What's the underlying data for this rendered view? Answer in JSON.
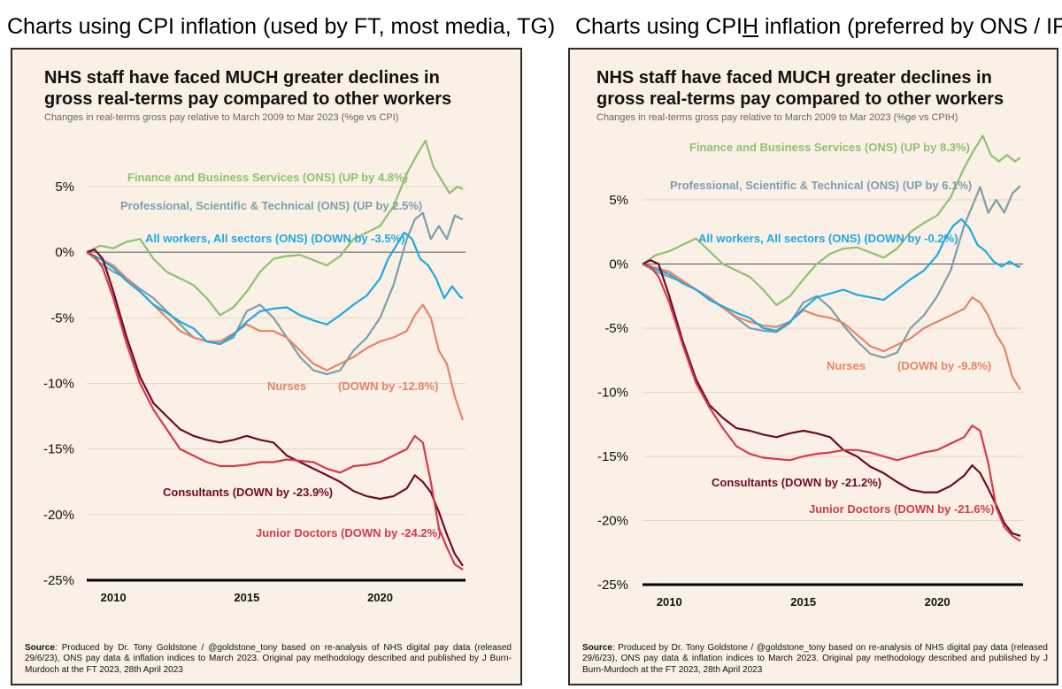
{
  "headings": {
    "left": {
      "part1": "Charts using CPI inflation (used by FT, most media, TG)"
    },
    "right": {
      "part1": "Charts using CPI",
      "underlined": "H",
      "part2": " inflation (preferred by ONS / IFS)"
    }
  },
  "colors": {
    "background": "#fbf0e5",
    "finance": "#8dc26f",
    "professional": "#7a9fae",
    "all_workers": "#1fa9e1",
    "nurses": "#e7836a",
    "consultants": "#6e0a2a",
    "junior_doctors": "#d43a4c",
    "grid": "#e4d6c8",
    "zero_line": "#555555",
    "tick_text": "#111111",
    "subtitle": "#666666"
  },
  "source": {
    "label": "Source",
    "text": ": Produced by Dr. Tony Goldstone / @goldstone_tony based on re-analysis of NHS digital pay data (released 29/6/23), ONS pay data & inflation indices to March 2023.  Original pay methodology described and published by J Burn-Murdoch at the FT 2023, 28th April 2023"
  },
  "chart_data": [
    {
      "type": "line",
      "title_line1": "NHS staff have faced MUCH greater declines in",
      "title_line2": "gross real-terms pay compared to other workers",
      "subtitle": "Changes in real-terms gross pay relative to March 2009 to Mar 2023 (%ge vs CPI)",
      "xlim": [
        2009.0,
        2023.2
      ],
      "ylim": [
        -25,
        8
      ],
      "x_ticks": [
        2010,
        2015,
        2020
      ],
      "x_tick_labels": [
        "2010",
        "2015",
        "2020"
      ],
      "y_ticks": [
        5,
        0,
        -5,
        -10,
        -15,
        -20,
        -25
      ],
      "y_tick_labels": [
        "5%",
        "0%",
        "-5%",
        "-10%",
        "-15%",
        "-20%",
        "-25%"
      ],
      "series": [
        {
          "key": "finance",
          "label": "Finance and Business Services (ONS) (UP by 4.8%)",
          "x": [
            2009.0,
            2009.5,
            2010.0,
            2010.5,
            2011.0,
            2011.5,
            2012.0,
            2012.5,
            2013.0,
            2013.5,
            2014.0,
            2014.5,
            2015.0,
            2015.5,
            2016.0,
            2016.5,
            2017.0,
            2017.5,
            2018.0,
            2018.5,
            2019.0,
            2019.5,
            2020.0,
            2020.5,
            2021.0,
            2021.4,
            2021.7,
            2022.0,
            2022.3,
            2022.6,
            2022.9,
            2023.1
          ],
          "y": [
            0,
            0.5,
            0.3,
            0.8,
            1.0,
            -0.5,
            -1.5,
            -2.0,
            -2.5,
            -3.5,
            -4.8,
            -4.2,
            -3.0,
            -1.5,
            -0.5,
            -0.3,
            -0.2,
            -0.6,
            -1.0,
            -0.3,
            1.0,
            1.5,
            2.0,
            3.5,
            6.0,
            7.5,
            8.5,
            6.5,
            5.5,
            4.5,
            5.0,
            4.8
          ]
        },
        {
          "key": "professional",
          "label": "Professional, Scientific & Technical (ONS) (UP by 2.5%)",
          "x": [
            2009.0,
            2009.5,
            2010.0,
            2010.5,
            2011.0,
            2011.5,
            2012.0,
            2012.5,
            2013.0,
            2013.5,
            2014.0,
            2014.5,
            2015.0,
            2015.5,
            2016.0,
            2016.5,
            2017.0,
            2017.5,
            2018.0,
            2018.5,
            2019.0,
            2019.5,
            2020.0,
            2020.5,
            2021.0,
            2021.3,
            2021.6,
            2021.9,
            2022.2,
            2022.5,
            2022.8,
            2023.1
          ],
          "y": [
            0,
            -0.8,
            -1.5,
            -2.0,
            -2.8,
            -3.5,
            -4.5,
            -5.5,
            -6.5,
            -6.8,
            -7.0,
            -6.5,
            -4.5,
            -4.0,
            -5.0,
            -6.5,
            -8.0,
            -9.0,
            -9.3,
            -9.0,
            -7.5,
            -6.5,
            -5.0,
            -2.5,
            1.0,
            2.5,
            3.0,
            1.0,
            2.0,
            1.0,
            2.8,
            2.5
          ]
        },
        {
          "key": "all_workers",
          "label": "All workers, All sectors (ONS) (DOWN by -3.5%)",
          "x": [
            2009.0,
            2009.5,
            2010.0,
            2010.5,
            2011.0,
            2011.5,
            2012.0,
            2012.5,
            2013.0,
            2013.5,
            2014.0,
            2014.5,
            2015.0,
            2015.5,
            2016.0,
            2016.5,
            2017.0,
            2017.5,
            2018.0,
            2018.5,
            2019.0,
            2019.5,
            2020.0,
            2020.3,
            2020.6,
            2020.9,
            2021.2,
            2021.5,
            2021.8,
            2022.1,
            2022.4,
            2022.7,
            2023.0,
            2023.1
          ],
          "y": [
            0,
            -0.5,
            -1.2,
            -2.2,
            -3.0,
            -4.0,
            -4.6,
            -5.3,
            -5.8,
            -6.8,
            -7.0,
            -6.3,
            -5.3,
            -4.5,
            -4.3,
            -4.2,
            -4.8,
            -5.2,
            -5.5,
            -4.8,
            -4.0,
            -3.3,
            -2.0,
            -0.5,
            0.5,
            1.5,
            1.0,
            -0.5,
            -1.0,
            -2.0,
            -3.5,
            -2.6,
            -3.4,
            -3.5
          ]
        },
        {
          "key": "nurses",
          "label": "Nurses",
          "label2": "(DOWN by -12.8%)",
          "x": [
            2009.0,
            2009.5,
            2010.0,
            2010.5,
            2011.0,
            2011.5,
            2012.0,
            2012.5,
            2013.0,
            2013.5,
            2014.0,
            2014.5,
            2015.0,
            2015.5,
            2016.0,
            2016.5,
            2017.0,
            2017.5,
            2018.0,
            2018.5,
            2019.0,
            2019.5,
            2020.0,
            2020.5,
            2021.0,
            2021.3,
            2021.6,
            2021.9,
            2022.2,
            2022.5,
            2022.8,
            2023.1
          ],
          "y": [
            0,
            -0.5,
            -1.0,
            -2.0,
            -3.0,
            -4.0,
            -5.0,
            -6.0,
            -6.5,
            -6.8,
            -6.8,
            -6.2,
            -5.5,
            -6.0,
            -6.0,
            -6.5,
            -7.5,
            -8.5,
            -9.0,
            -8.5,
            -8.0,
            -7.3,
            -6.8,
            -6.5,
            -6.0,
            -4.8,
            -4.0,
            -5.0,
            -7.5,
            -8.5,
            -11.0,
            -12.8
          ]
        },
        {
          "key": "consultants",
          "label": "Consultants (DOWN by -23.9%)",
          "x": [
            2009.0,
            2009.3,
            2009.6,
            2010.0,
            2010.5,
            2011.0,
            2011.5,
            2012.0,
            2012.5,
            2013.0,
            2013.5,
            2014.0,
            2014.5,
            2015.0,
            2015.5,
            2016.0,
            2016.5,
            2017.0,
            2017.5,
            2018.0,
            2018.5,
            2019.0,
            2019.5,
            2020.0,
            2020.5,
            2021.0,
            2021.3,
            2021.6,
            2021.9,
            2022.2,
            2022.5,
            2022.8,
            2023.1
          ],
          "y": [
            0,
            0.2,
            -0.5,
            -3.0,
            -6.5,
            -9.5,
            -11.5,
            -12.5,
            -13.5,
            -14.0,
            -14.3,
            -14.5,
            -14.3,
            -14.0,
            -14.3,
            -14.5,
            -15.5,
            -16.0,
            -16.5,
            -17.0,
            -17.5,
            -18.2,
            -18.6,
            -18.8,
            -18.6,
            -18.0,
            -17.0,
            -17.5,
            -18.3,
            -19.8,
            -21.5,
            -23.0,
            -23.9
          ]
        },
        {
          "key": "junior_doctors",
          "label": "Junior Doctors (DOWN by -24.2%)",
          "x": [
            2009.0,
            2009.3,
            2009.6,
            2010.0,
            2010.5,
            2011.0,
            2011.5,
            2012.0,
            2012.5,
            2013.0,
            2013.5,
            2014.0,
            2014.5,
            2015.0,
            2015.5,
            2016.0,
            2016.5,
            2017.0,
            2017.5,
            2018.0,
            2018.5,
            2019.0,
            2019.5,
            2020.0,
            2020.5,
            2021.0,
            2021.3,
            2021.6,
            2021.9,
            2022.2,
            2022.5,
            2022.8,
            2023.1
          ],
          "y": [
            0,
            -0.3,
            -1.2,
            -3.5,
            -7.0,
            -10.0,
            -12.0,
            -13.5,
            -15.0,
            -15.5,
            -16.0,
            -16.3,
            -16.3,
            -16.2,
            -16.0,
            -16.0,
            -15.8,
            -15.9,
            -16.0,
            -16.5,
            -16.8,
            -16.3,
            -16.2,
            -16.0,
            -15.5,
            -15.0,
            -14.0,
            -14.5,
            -17.5,
            -21.0,
            -22.5,
            -23.8,
            -24.2
          ]
        }
      ],
      "label_colors": {
        "finance": "#8dc26f",
        "professional": "#7a9fae",
        "all_workers": "#1fa9e1",
        "nurses": "#e7836a",
        "consultants": "#6e0a2a",
        "junior_doctors": "#d43a4c"
      }
    },
    {
      "type": "line",
      "title_line1": "NHS staff have faced MUCH greater declines in",
      "title_line2": "gross real-terms pay compared to other workers",
      "subtitle": "Changes in real-terms gross pay relative to March 2009 to Mar 2023 (%ge vs CPIH)",
      "xlim": [
        2009.0,
        2023.2
      ],
      "ylim": [
        -25,
        10
      ],
      "x_ticks": [
        2010,
        2015,
        2020
      ],
      "x_tick_labels": [
        "2010",
        "2015",
        "2020"
      ],
      "y_ticks": [
        5,
        0,
        -5,
        -10,
        -15,
        -20,
        -25
      ],
      "y_tick_labels": [
        "5%",
        "0%",
        "-5%",
        "-10%",
        "-15%",
        "-20%",
        "-25%"
      ],
      "series": [
        {
          "key": "finance",
          "label": "Finance and Business Services (ONS) (UP by 8.3%)",
          "x": [
            2009.0,
            2009.5,
            2010.0,
            2010.5,
            2011.0,
            2011.5,
            2012.0,
            2012.5,
            2013.0,
            2013.5,
            2014.0,
            2014.5,
            2015.0,
            2015.5,
            2016.0,
            2016.5,
            2017.0,
            2017.5,
            2018.0,
            2018.5,
            2019.0,
            2019.5,
            2020.0,
            2020.5,
            2021.0,
            2021.4,
            2021.7,
            2022.0,
            2022.3,
            2022.6,
            2022.9,
            2023.1
          ],
          "y": [
            0,
            0.7,
            1.0,
            1.5,
            2.0,
            1.0,
            0,
            -0.5,
            -1.0,
            -2.0,
            -3.2,
            -2.5,
            -1.2,
            0,
            0.8,
            1.2,
            1.3,
            0.9,
            0.5,
            1.2,
            2.5,
            3.2,
            3.8,
            5.2,
            7.5,
            9.0,
            10.0,
            8.5,
            8.0,
            8.5,
            8.0,
            8.3
          ]
        },
        {
          "key": "professional",
          "label": "Professional, Scientific & Technical (ONS) (UP by 6.1%)",
          "x": [
            2009.0,
            2009.5,
            2010.0,
            2010.5,
            2011.0,
            2011.5,
            2012.0,
            2012.5,
            2013.0,
            2013.5,
            2014.0,
            2014.5,
            2015.0,
            2015.5,
            2016.0,
            2016.5,
            2017.0,
            2017.5,
            2018.0,
            2018.5,
            2019.0,
            2019.5,
            2020.0,
            2020.5,
            2021.0,
            2021.3,
            2021.6,
            2021.9,
            2022.2,
            2022.5,
            2022.8,
            2023.1
          ],
          "y": [
            0,
            -0.6,
            -1.0,
            -1.4,
            -2.0,
            -2.6,
            -3.4,
            -4.2,
            -5.0,
            -5.2,
            -5.3,
            -4.6,
            -3.0,
            -2.5,
            -3.4,
            -4.8,
            -6.0,
            -7.0,
            -7.3,
            -6.9,
            -5.0,
            -4.0,
            -2.5,
            -0.5,
            3.0,
            4.5,
            6.0,
            4.0,
            5.0,
            4.0,
            5.5,
            6.1
          ]
        },
        {
          "key": "all_workers",
          "label": "All workers, All sectors (ONS) (DOWN by -0.2%)",
          "x": [
            2009.0,
            2009.5,
            2010.0,
            2010.5,
            2011.0,
            2011.5,
            2012.0,
            2012.5,
            2013.0,
            2013.5,
            2014.0,
            2014.5,
            2015.0,
            2015.5,
            2016.0,
            2016.5,
            2017.0,
            2017.5,
            2018.0,
            2018.5,
            2019.0,
            2019.5,
            2020.0,
            2020.3,
            2020.6,
            2020.9,
            2021.2,
            2021.5,
            2021.8,
            2022.1,
            2022.4,
            2022.7,
            2023.0,
            2023.1
          ],
          "y": [
            0,
            -0.4,
            -0.8,
            -1.5,
            -2.0,
            -2.8,
            -3.3,
            -3.8,
            -4.2,
            -5.0,
            -5.2,
            -4.5,
            -3.5,
            -2.6,
            -2.3,
            -2.0,
            -2.4,
            -2.6,
            -2.8,
            -2.0,
            -1.2,
            -0.5,
            0.7,
            2.0,
            3.0,
            3.5,
            2.8,
            1.5,
            1.0,
            0.2,
            -0.2,
            0.2,
            -0.2,
            -0.2
          ]
        },
        {
          "key": "nurses",
          "label": "Nurses",
          "label2": "(DOWN by -9.8%)",
          "x": [
            2009.0,
            2009.5,
            2010.0,
            2010.5,
            2011.0,
            2011.5,
            2012.0,
            2012.5,
            2013.0,
            2013.5,
            2014.0,
            2014.5,
            2015.0,
            2015.5,
            2016.0,
            2016.5,
            2017.0,
            2017.5,
            2018.0,
            2018.5,
            2019.0,
            2019.5,
            2020.0,
            2020.5,
            2021.0,
            2021.3,
            2021.6,
            2021.9,
            2022.2,
            2022.5,
            2022.8,
            2023.1
          ],
          "y": [
            0,
            -0.3,
            -0.6,
            -1.3,
            -2.0,
            -2.7,
            -3.4,
            -4.1,
            -4.5,
            -4.8,
            -4.9,
            -4.5,
            -3.6,
            -4.0,
            -4.2,
            -4.6,
            -5.5,
            -6.4,
            -6.8,
            -6.3,
            -5.8,
            -5.0,
            -4.5,
            -4.0,
            -3.5,
            -2.6,
            -3.0,
            -4.0,
            -5.5,
            -6.5,
            -8.8,
            -9.8
          ]
        },
        {
          "key": "consultants",
          "label": "Consultants (DOWN by -21.2%)",
          "x": [
            2009.0,
            2009.3,
            2009.6,
            2010.0,
            2010.5,
            2011.0,
            2011.5,
            2012.0,
            2012.5,
            2013.0,
            2013.5,
            2014.0,
            2014.5,
            2015.0,
            2015.5,
            2016.0,
            2016.5,
            2017.0,
            2017.5,
            2018.0,
            2018.5,
            2019.0,
            2019.5,
            2020.0,
            2020.5,
            2021.0,
            2021.3,
            2021.6,
            2021.9,
            2022.2,
            2022.5,
            2022.8,
            2023.1
          ],
          "y": [
            0,
            0.3,
            0,
            -2.5,
            -6.0,
            -9.0,
            -11.0,
            -12.0,
            -12.8,
            -13.0,
            -13.3,
            -13.5,
            -13.2,
            -13.0,
            -13.2,
            -13.5,
            -14.5,
            -15.0,
            -15.8,
            -16.3,
            -17.0,
            -17.6,
            -17.8,
            -17.8,
            -17.3,
            -16.5,
            -15.7,
            -16.3,
            -17.5,
            -18.8,
            -20.2,
            -21.0,
            -21.2
          ]
        },
        {
          "key": "junior_doctors",
          "label": "Junior Doctors (DOWN by -21.6%)",
          "x": [
            2009.0,
            2009.3,
            2009.6,
            2010.0,
            2010.5,
            2011.0,
            2011.5,
            2012.0,
            2012.5,
            2013.0,
            2013.5,
            2014.0,
            2014.5,
            2015.0,
            2015.5,
            2016.0,
            2016.5,
            2017.0,
            2017.5,
            2018.0,
            2018.5,
            2019.0,
            2019.5,
            2020.0,
            2020.5,
            2021.0,
            2021.3,
            2021.6,
            2021.9,
            2022.2,
            2022.5,
            2022.8,
            2023.1
          ],
          "y": [
            0,
            -0.2,
            -1.0,
            -3.0,
            -6.3,
            -9.3,
            -11.2,
            -12.8,
            -14.2,
            -14.8,
            -15.1,
            -15.2,
            -15.3,
            -15.0,
            -14.8,
            -14.7,
            -14.5,
            -14.5,
            -14.7,
            -15.0,
            -15.3,
            -15.0,
            -14.7,
            -14.5,
            -14.0,
            -13.5,
            -12.6,
            -13.0,
            -15.5,
            -19.0,
            -20.5,
            -21.2,
            -21.6
          ]
        }
      ],
      "label_colors": {
        "finance": "#8dc26f",
        "professional": "#7a9fae",
        "all_workers": "#1fa9e1",
        "nurses": "#e7836a",
        "consultants": "#6e0a2a",
        "junior_doctors": "#d43a4c"
      }
    }
  ]
}
